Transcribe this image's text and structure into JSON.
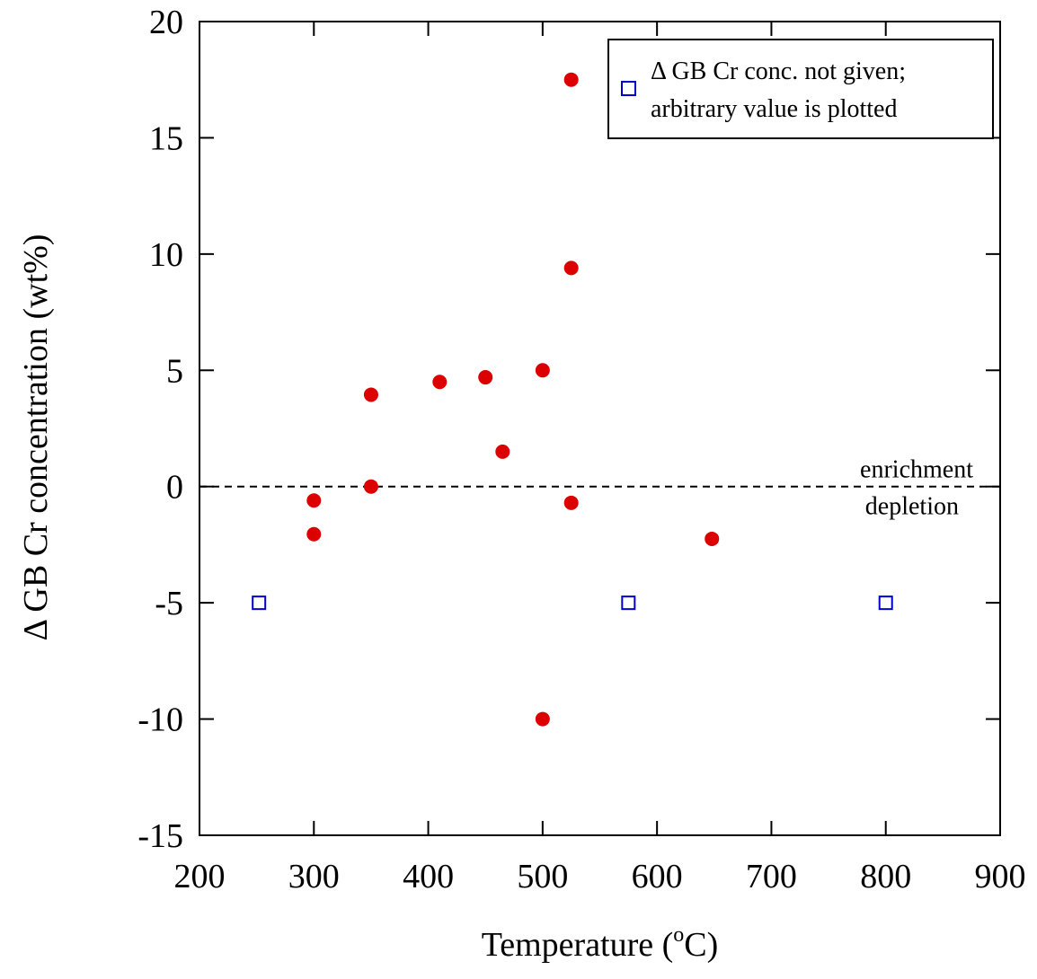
{
  "chart_data": {
    "type": "scatter",
    "title": "",
    "xlabel": "Temperature",
    "xlabel_unit": "(°C)",
    "xlabel_prefix": "Temperature (",
    "xlabel_sup": "o",
    "xlabel_suffix": "C)",
    "ylabel": "Δ GB Cr concentration (wt%)",
    "xlim": [
      200,
      900
    ],
    "ylim": [
      -15,
      20
    ],
    "x_ticks": [
      200,
      300,
      400,
      500,
      600,
      700,
      800,
      900
    ],
    "y_ticks": [
      -15,
      -10,
      -5,
      0,
      5,
      10,
      15,
      20
    ],
    "x_tick_labels": [
      "200",
      "300",
      "400",
      "500",
      "600",
      "700",
      "800",
      "900"
    ],
    "y_tick_labels": [
      "-15",
      "-10",
      "-5",
      "0",
      "5",
      "10",
      "15",
      "20"
    ],
    "grid": false,
    "legend_position": "top-right",
    "reference_line": {
      "y": 0,
      "style": "dashed"
    },
    "annotations": {
      "above": "enrichment",
      "below": "depletion"
    },
    "series": [
      {
        "marker": "filled-circle",
        "color": "#dd0000",
        "points": [
          [
            300,
            -0.6
          ],
          [
            300,
            -2.05
          ],
          [
            350,
            3.95
          ],
          [
            350,
            0.0
          ],
          [
            410,
            4.5
          ],
          [
            450,
            4.7
          ],
          [
            465,
            1.5
          ],
          [
            500,
            5.0
          ],
          [
            500,
            -10.0
          ],
          [
            525,
            17.5
          ],
          [
            525,
            9.4
          ],
          [
            525,
            -0.7
          ],
          [
            648,
            -2.25
          ]
        ]
      },
      {
        "name": "Δ GB Cr conc. not given; arbitrary value is plotted",
        "legend_lines": [
          "Δ GB Cr conc. not given;",
          "arbitrary value is plotted"
        ],
        "marker": "open-square",
        "color": "#0000cc",
        "points": [
          [
            252,
            -5
          ],
          [
            575,
            -5
          ],
          [
            800,
            -5
          ]
        ]
      }
    ]
  }
}
